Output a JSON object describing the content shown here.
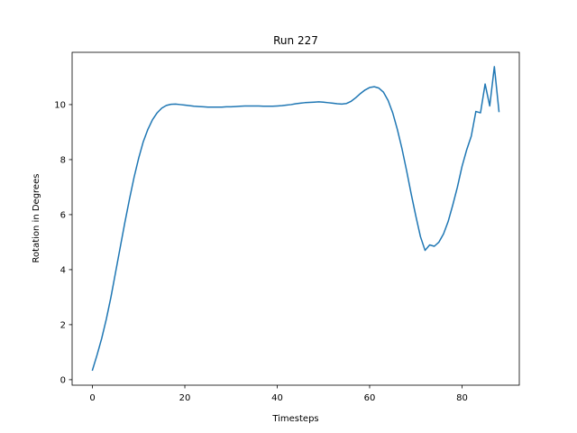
{
  "chart_data": {
    "type": "line",
    "title": "Run 227",
    "xlabel": "Timesteps",
    "ylabel": "Rotation in Degrees",
    "xlim": [
      -4.4,
      92.4
    ],
    "ylim": [
      -0.2,
      11.9
    ],
    "xticks": [
      0,
      20,
      40,
      60,
      80
    ],
    "yticks": [
      0,
      2,
      4,
      6,
      8,
      10
    ],
    "grid": false,
    "legend": "none",
    "series": [
      {
        "color": "#1f77b4",
        "x": [
          0,
          1,
          2,
          3,
          4,
          5,
          6,
          7,
          8,
          9,
          10,
          11,
          12,
          13,
          14,
          15,
          16,
          17,
          18,
          19,
          20,
          21,
          22,
          23,
          24,
          25,
          26,
          27,
          28,
          29,
          30,
          31,
          32,
          33,
          34,
          35,
          36,
          37,
          38,
          39,
          40,
          41,
          42,
          43,
          44,
          45,
          46,
          47,
          48,
          49,
          50,
          51,
          52,
          53,
          54,
          55,
          56,
          57,
          58,
          59,
          60,
          61,
          62,
          63,
          64,
          65,
          66,
          67,
          68,
          69,
          70,
          71,
          72,
          73,
          74,
          75,
          76,
          77,
          78,
          79,
          80,
          81,
          82,
          83,
          84,
          85,
          86,
          87,
          88
        ],
        "y": [
          0.35,
          0.9,
          1.5,
          2.2,
          3.0,
          3.9,
          4.8,
          5.7,
          6.55,
          7.35,
          8.05,
          8.65,
          9.1,
          9.45,
          9.7,
          9.87,
          9.97,
          10.01,
          10.02,
          10.0,
          9.98,
          9.96,
          9.94,
          9.93,
          9.92,
          9.91,
          9.91,
          9.91,
          9.91,
          9.92,
          9.92,
          9.93,
          9.94,
          9.95,
          9.95,
          9.95,
          9.95,
          9.94,
          9.94,
          9.94,
          9.95,
          9.96,
          9.98,
          10.0,
          10.03,
          10.05,
          10.07,
          10.08,
          10.09,
          10.1,
          10.09,
          10.07,
          10.05,
          10.03,
          10.02,
          10.04,
          10.12,
          10.25,
          10.4,
          10.53,
          10.62,
          10.65,
          10.6,
          10.45,
          10.15,
          9.7,
          9.1,
          8.4,
          7.6,
          6.75,
          5.95,
          5.2,
          4.7,
          4.9,
          4.85,
          5.0,
          5.3,
          5.75,
          6.35,
          7.0,
          7.75,
          8.35,
          8.85,
          9.75,
          9.7,
          10.75,
          9.95,
          11.38,
          9.75
        ]
      }
    ]
  }
}
